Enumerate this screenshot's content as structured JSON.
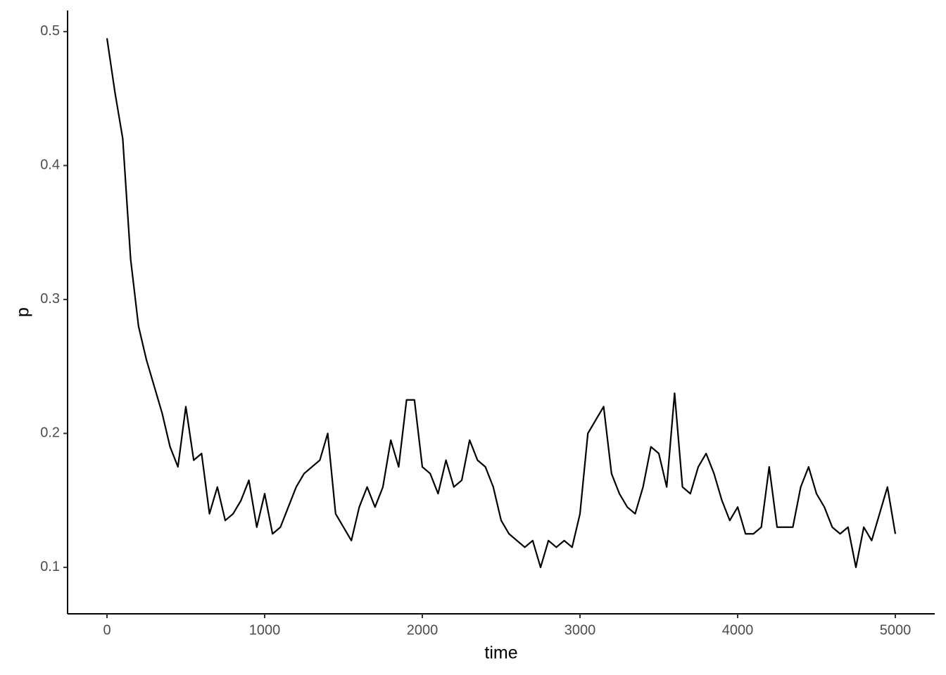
{
  "chart_data": {
    "type": "line",
    "x_label": "time",
    "y_label": "p",
    "x": [
      0,
      50,
      100,
      150,
      200,
      250,
      300,
      350,
      400,
      450,
      500,
      550,
      600,
      650,
      700,
      750,
      800,
      850,
      900,
      950,
      1000,
      1050,
      1100,
      1150,
      1200,
      1250,
      1300,
      1350,
      1400,
      1450,
      1500,
      1550,
      1600,
      1650,
      1700,
      1750,
      1800,
      1850,
      1900,
      1950,
      2000,
      2050,
      2100,
      2150,
      2200,
      2250,
      2300,
      2350,
      2400,
      2450,
      2500,
      2550,
      2600,
      2650,
      2700,
      2750,
      2800,
      2850,
      2900,
      2950,
      3000,
      3050,
      3100,
      3150,
      3200,
      3250,
      3300,
      3350,
      3400,
      3450,
      3500,
      3550,
      3600,
      3650,
      3700,
      3750,
      3800,
      3850,
      3900,
      3950,
      4000,
      4050,
      4100,
      4150,
      4200,
      4250,
      4300,
      4350,
      4400,
      4450,
      4500,
      4550,
      4600,
      4650,
      4700,
      4750,
      4800,
      4850,
      4900,
      4950,
      5000
    ],
    "series": [
      {
        "color": "#000000",
        "values": [
          0.495,
          0.455,
          0.42,
          0.33,
          0.28,
          0.255,
          0.235,
          0.215,
          0.19,
          0.175,
          0.22,
          0.18,
          0.185,
          0.14,
          0.16,
          0.135,
          0.14,
          0.15,
          0.165,
          0.13,
          0.155,
          0.125,
          0.13,
          0.145,
          0.16,
          0.17,
          0.175,
          0.18,
          0.2,
          0.14,
          0.13,
          0.12,
          0.145,
          0.16,
          0.145,
          0.16,
          0.195,
          0.175,
          0.225,
          0.225,
          0.175,
          0.17,
          0.155,
          0.18,
          0.16,
          0.165,
          0.195,
          0.18,
          0.175,
          0.16,
          0.135,
          0.125,
          0.12,
          0.115,
          0.12,
          0.1,
          0.12,
          0.115,
          0.12,
          0.115,
          0.14,
          0.2,
          0.21,
          0.22,
          0.17,
          0.155,
          0.145,
          0.14,
          0.16,
          0.19,
          0.185,
          0.16,
          0.23,
          0.16,
          0.155,
          0.175,
          0.185,
          0.17,
          0.15,
          0.135,
          0.145,
          0.125,
          0.125,
          0.13,
          0.175,
          0.13,
          0.13,
          0.13,
          0.16,
          0.175,
          0.155,
          0.145,
          0.13,
          0.125,
          0.13,
          0.1,
          0.13,
          0.12,
          0.14,
          0.16,
          0.125
        ]
      }
    ],
    "xlim": [
      -250,
      5250
    ],
    "xticks": [
      0,
      1000,
      2000,
      3000,
      4000,
      5000
    ],
    "ylim": [
      0.0653,
      0.5157
    ],
    "yticks": [
      0.1,
      0.2,
      0.3,
      0.4,
      0.5
    ],
    "grid": false
  }
}
